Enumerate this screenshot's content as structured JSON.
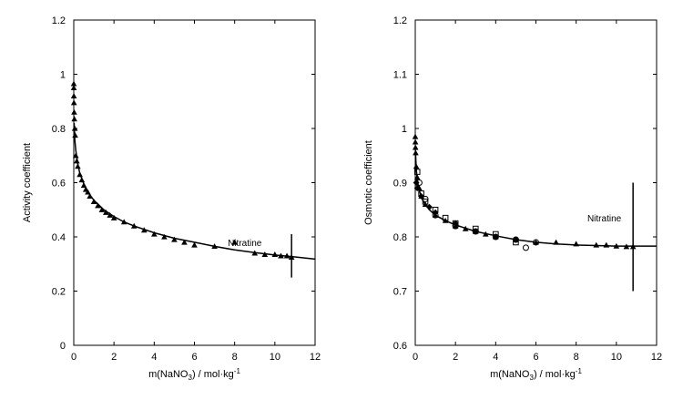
{
  "chart_data": [
    {
      "type": "scatter",
      "title": "",
      "xlabel": {
        "prefix": "m(NaNO",
        "sub": "3",
        "mid": ") / mol·kg",
        "sup": "-1"
      },
      "ylabel": "Activity coefficient",
      "xlim": [
        0,
        12
      ],
      "ylim": [
        0,
        1.2
      ],
      "xticks": [
        0,
        2,
        4,
        6,
        8,
        10,
        12
      ],
      "yticks": [
        0,
        0.2,
        0.4,
        0.6,
        0.8,
        1,
        1.2
      ],
      "xtick_labels": [
        "0",
        "2",
        "4",
        "6",
        "8",
        "10",
        "12"
      ],
      "ytick_labels": [
        "0",
        "0.2",
        "0.4",
        "0.6",
        "0.8",
        "1",
        "1.2"
      ],
      "annotation": {
        "text": "Nitratine",
        "x": 8.5,
        "y": 0.38
      },
      "vertical_marker": {
        "x": 10.83,
        "y_from": 0.25,
        "y_to": 0.41
      },
      "series": [
        {
          "marker": "triangle",
          "x": [
            0.001,
            0.002,
            0.005,
            0.01,
            0.02,
            0.03,
            0.05,
            0.07,
            0.1,
            0.15,
            0.2,
            0.3,
            0.4,
            0.5,
            0.6,
            0.7,
            0.8,
            1.0,
            1.2,
            1.4,
            1.6,
            1.8,
            2.0,
            2.5,
            3.0,
            3.5,
            4.0,
            4.5,
            5.0,
            5.5,
            6.0,
            7.0,
            8.0,
            9.0,
            9.5,
            10.0,
            10.3,
            10.6,
            10.83
          ],
          "y": [
            0.965,
            0.95,
            0.92,
            0.895,
            0.86,
            0.835,
            0.8,
            0.775,
            0.7,
            0.68,
            0.66,
            0.63,
            0.61,
            0.59,
            0.575,
            0.565,
            0.55,
            0.53,
            0.515,
            0.5,
            0.49,
            0.48,
            0.47,
            0.455,
            0.44,
            0.425,
            0.41,
            0.4,
            0.39,
            0.38,
            0.37,
            0.365,
            0.38,
            0.34,
            0.335,
            0.335,
            0.33,
            0.33,
            0.325
          ]
        }
      ],
      "fit_line": {
        "x": [
          0.02,
          0.05,
          0.1,
          0.2,
          0.3,
          0.5,
          0.75,
          1.0,
          1.5,
          2.0,
          2.5,
          3.0,
          4.0,
          5.0,
          6.0,
          7.0,
          8.0,
          9.0,
          10.0,
          11.0,
          12.0
        ],
        "y": [
          0.82,
          0.76,
          0.72,
          0.67,
          0.635,
          0.595,
          0.56,
          0.535,
          0.5,
          0.475,
          0.455,
          0.44,
          0.415,
          0.395,
          0.38,
          0.365,
          0.352,
          0.342,
          0.333,
          0.326,
          0.318
        ]
      }
    },
    {
      "type": "scatter",
      "title": "",
      "xlabel": {
        "prefix": "m(NaNO",
        "sub": "3",
        "mid": ") / mol·kg",
        "sup": "-1"
      },
      "ylabel": "Osmotic coefficient",
      "xlim": [
        0,
        12
      ],
      "ylim": [
        0.6,
        1.2
      ],
      "xticks": [
        0,
        2,
        4,
        6,
        8,
        10,
        12
      ],
      "yticks": [
        0.6,
        0.7,
        0.8,
        0.9,
        1.0,
        1.1,
        1.2
      ],
      "xtick_labels": [
        "0",
        "2",
        "4",
        "6",
        "8",
        "10",
        "12"
      ],
      "ytick_labels": [
        "0.6",
        "0.7",
        "0.8",
        "0.9",
        "1",
        "1.1",
        "1.2"
      ],
      "annotation": {
        "text": "Nitratine",
        "x": 9.4,
        "y": 0.835
      },
      "vertical_marker": {
        "x": 10.83,
        "y_from": 0.7,
        "y_to": 0.9
      },
      "series": [
        {
          "marker": "triangle",
          "x": [
            0.001,
            0.005,
            0.01,
            0.02,
            0.05,
            0.1,
            0.2,
            0.3,
            0.5,
            1.0,
            1.5,
            2.0,
            2.5,
            3.0,
            3.5,
            4.0,
            5.0,
            6.0,
            7.0,
            8.0,
            9.0,
            9.5,
            10.0,
            10.5,
            10.83
          ],
          "y": [
            0.985,
            0.975,
            0.965,
            0.955,
            0.93,
            0.91,
            0.89,
            0.875,
            0.86,
            0.84,
            0.83,
            0.82,
            0.815,
            0.81,
            0.805,
            0.8,
            0.795,
            0.79,
            0.79,
            0.787,
            0.785,
            0.785,
            0.783,
            0.782,
            0.782
          ]
        },
        {
          "marker": "square",
          "x": [
            0.1,
            0.3,
            0.5,
            1.0,
            1.5,
            2.0,
            3.0,
            4.0,
            5.0
          ],
          "y": [
            0.92,
            0.88,
            0.865,
            0.85,
            0.835,
            0.825,
            0.815,
            0.805,
            0.79
          ]
        },
        {
          "marker": "circle",
          "x": [
            0.2,
            0.5,
            1.0,
            2.0,
            3.0,
            4.0,
            5.0,
            5.5,
            6.0
          ],
          "y": [
            0.9,
            0.87,
            0.84,
            0.82,
            0.81,
            0.8,
            0.795,
            0.78,
            0.79
          ]
        },
        {
          "marker": "diamond",
          "x": [
            0.05,
            0.1,
            0.3,
            0.7,
            1.0,
            2.0,
            3.0,
            4.0,
            5.0
          ],
          "y": [
            0.9,
            0.89,
            0.875,
            0.855,
            0.845,
            0.825,
            0.81,
            0.8,
            0.795
          ]
        }
      ],
      "fit_line": {
        "x": [
          0.01,
          0.05,
          0.1,
          0.2,
          0.4,
          0.7,
          1.0,
          1.5,
          2.0,
          3.0,
          4.0,
          5.0,
          6.0,
          7.0,
          8.0,
          9.0,
          10.0,
          11.0,
          12.0
        ],
        "y": [
          0.96,
          0.925,
          0.905,
          0.885,
          0.865,
          0.85,
          0.84,
          0.83,
          0.822,
          0.81,
          0.802,
          0.795,
          0.79,
          0.787,
          0.785,
          0.784,
          0.783,
          0.783,
          0.783
        ]
      }
    }
  ]
}
